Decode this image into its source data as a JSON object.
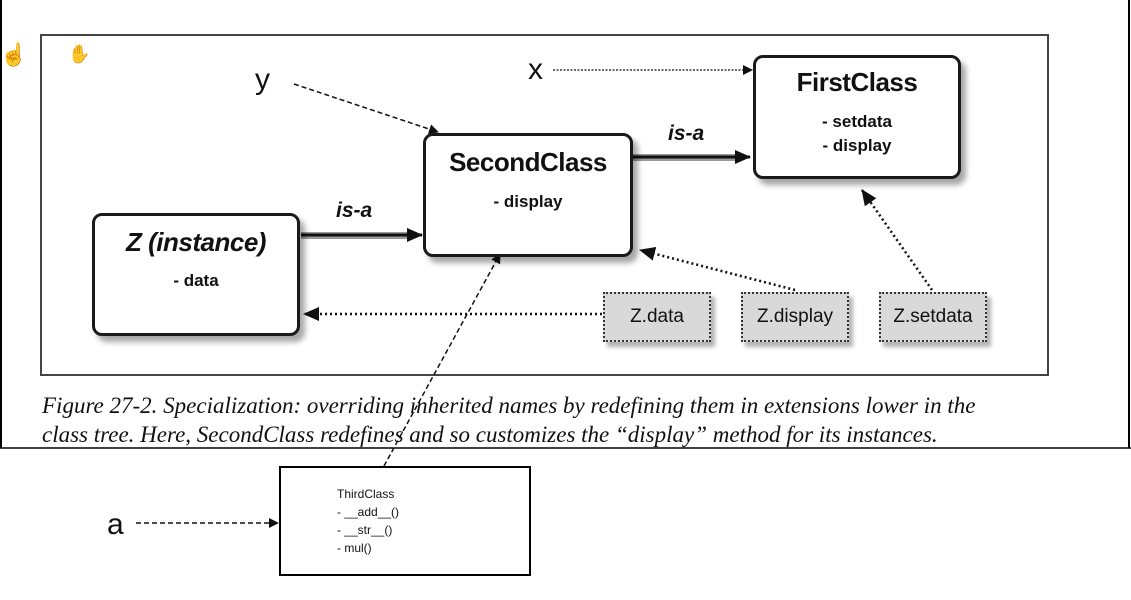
{
  "figure": {
    "labels": {
      "y": "y",
      "x": "x",
      "a": "a"
    },
    "classes": {
      "first": {
        "title": "FirstClass",
        "members": [
          "- setdata",
          "- display"
        ]
      },
      "second": {
        "title": "SecondClass",
        "members": [
          "- display"
        ]
      },
      "instance": {
        "title": "Z (instance)",
        "members": [
          "- data"
        ]
      }
    },
    "isa": {
      "second_to_first": "is-a",
      "instance_to_second": "is-a"
    },
    "attributes": [
      "Z.data",
      "Z.display",
      "Z.setdata"
    ],
    "caption": {
      "line1": "Figure 27-2. Specialization: overriding inherited names by redefining them in extensions lower in the",
      "line2": "class tree. Here, SecondClass redefines and so customizes the “display” method for its instances."
    }
  },
  "third_class": {
    "title": "ThirdClass",
    "members": [
      "- __add__()",
      "- __str__()",
      "- mul()"
    ]
  }
}
